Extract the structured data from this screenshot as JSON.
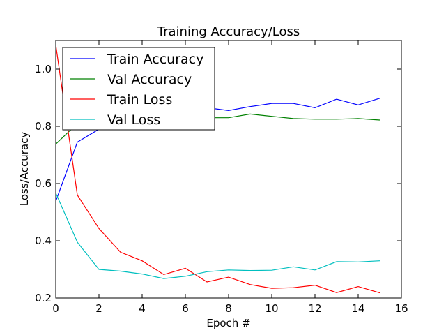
{
  "chart_data": {
    "type": "line",
    "title": "Training Accuracy/Loss",
    "xlabel": "Epoch #",
    "ylabel": "Loss/Accuracy",
    "xlim": [
      0,
      16
    ],
    "ylim": [
      0.2,
      1.1
    ],
    "x_ticks": [
      0,
      2,
      4,
      6,
      8,
      10,
      12,
      14,
      16
    ],
    "y_ticks": [
      0.2,
      0.4,
      0.6,
      0.8,
      1.0
    ],
    "x_tick_labels": [
      "0",
      "2",
      "4",
      "6",
      "8",
      "10",
      "12",
      "14",
      "16"
    ],
    "y_tick_labels": [
      "0.2",
      "0.4",
      "0.6",
      "0.8",
      "1.0"
    ],
    "grid": false,
    "legend_position": "upper-left",
    "x": [
      0,
      1,
      2,
      3,
      4,
      5,
      6,
      7,
      8,
      9,
      10,
      11,
      12,
      13,
      14,
      15
    ],
    "series": [
      {
        "name": "Train Accuracy",
        "color": "#0000ff",
        "values": [
          0.538,
          0.745,
          0.79,
          0.82,
          0.835,
          0.845,
          0.855,
          0.865,
          0.855,
          0.869,
          0.88,
          0.88,
          0.865,
          0.895,
          0.875,
          0.898
        ]
      },
      {
        "name": "Val Accuracy",
        "color": "#008000",
        "values": [
          0.738,
          0.81,
          0.815,
          0.82,
          0.825,
          0.825,
          0.828,
          0.83,
          0.83,
          0.843,
          0.835,
          0.827,
          0.825,
          0.825,
          0.827,
          0.822
        ]
      },
      {
        "name": "Train Loss",
        "color": "#ff0000",
        "values": [
          1.085,
          0.56,
          0.443,
          0.36,
          0.33,
          0.282,
          0.304,
          0.256,
          0.273,
          0.247,
          0.234,
          0.236,
          0.245,
          0.219,
          0.24,
          0.218
        ]
      },
      {
        "name": "Val Loss",
        "color": "#00bfbf",
        "values": [
          0.567,
          0.395,
          0.3,
          0.294,
          0.284,
          0.268,
          0.276,
          0.292,
          0.298,
          0.296,
          0.297,
          0.309,
          0.298,
          0.327,
          0.326,
          0.33
        ]
      }
    ]
  }
}
